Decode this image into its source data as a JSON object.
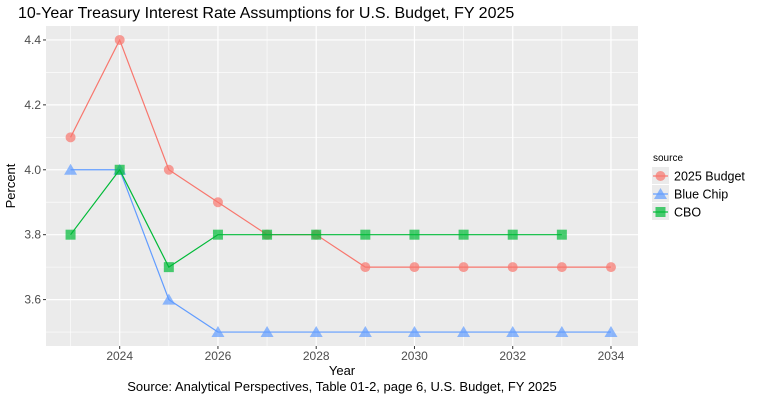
{
  "chart_data": {
    "type": "line",
    "title": "10-Year Treasury Interest Rate Assumptions for U.S. Budget, FY 2025",
    "xlabel": "Year",
    "ylabel": "Percent",
    "caption": "Source: Analytical Perspectives, Table 01-2, page 6, U.S. Budget, FY 2025",
    "xlim": [
      2022.5,
      2034.55
    ],
    "ylim": [
      3.457,
      4.443
    ],
    "x_ticks": [
      2024,
      2026,
      2028,
      2030,
      2032,
      2034
    ],
    "x_tick_labels": [
      "2024",
      "2026",
      "2028",
      "2030",
      "2032",
      "2034"
    ],
    "y_ticks": [
      3.6,
      3.8,
      4.0,
      4.2,
      4.4
    ],
    "y_tick_labels": [
      "3.6",
      "3.8",
      "4.0",
      "4.2",
      "4.4"
    ],
    "grid": true,
    "legend": {
      "title": "source",
      "position": "right"
    },
    "series": [
      {
        "name": "2025 Budget",
        "color": "#F8766D",
        "marker": "circle",
        "x": [
          2023,
          2024,
          2025,
          2026,
          2027,
          2028,
          2029,
          2030,
          2031,
          2032,
          2033,
          2034
        ],
        "values": [
          4.1,
          4.4,
          4.0,
          3.9,
          3.8,
          3.8,
          3.7,
          3.7,
          3.7,
          3.7,
          3.7,
          3.7
        ]
      },
      {
        "name": "Blue Chip",
        "color": "#619CFF",
        "marker": "triangle",
        "x": [
          2023,
          2024,
          2025,
          2026,
          2027,
          2028,
          2029,
          2030,
          2031,
          2032,
          2033,
          2034
        ],
        "values": [
          4.0,
          4.0,
          3.6,
          3.5,
          3.5,
          3.5,
          3.5,
          3.5,
          3.5,
          3.5,
          3.5,
          3.5
        ]
      },
      {
        "name": "CBO",
        "color": "#00BA38",
        "marker": "square",
        "x": [
          2023,
          2024,
          2025,
          2026,
          2027,
          2028,
          2029,
          2030,
          2031,
          2032,
          2033
        ],
        "values": [
          3.8,
          4.0,
          3.7,
          3.8,
          3.8,
          3.8,
          3.8,
          3.8,
          3.8,
          3.8,
          3.8
        ]
      }
    ]
  }
}
